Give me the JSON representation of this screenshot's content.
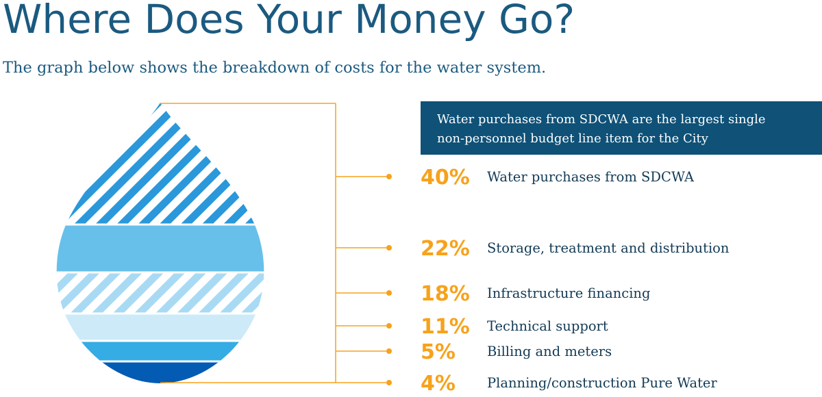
{
  "title": "Where Does Your Money Go?",
  "subtitle": "The graph below shows the breakdown of costs for the water system.",
  "callout": {
    "line1": "Water purchases from SDCWA are the largest single",
    "line2": "non-personnel budget line item for the City"
  },
  "colors": {
    "title": "#1b5a80",
    "accent": "#f7a21b",
    "callout_bg": "#0f5177",
    "label": "#123a55"
  },
  "chart_data": {
    "type": "pie",
    "unit": "%",
    "categories": [
      "Water purchases from SDCWA",
      "Storage, treatment and distribution",
      "Infrastructure financing",
      "Technical support",
      "Billing and meters",
      "Planning/construction Pure Water"
    ],
    "values": [
      40,
      22,
      18,
      11,
      5,
      4
    ],
    "labels": [
      "40%",
      "22%",
      "18%",
      "11%",
      "5%",
      "4%"
    ],
    "series_colors": [
      "#2a98da",
      "#67c0ea",
      "#a9daf4",
      "#cdeaf8",
      "#35ace4",
      "#035bb3"
    ],
    "series_patterns": [
      "stripe",
      "solid",
      "stripe",
      "solid",
      "solid",
      "solid"
    ]
  }
}
